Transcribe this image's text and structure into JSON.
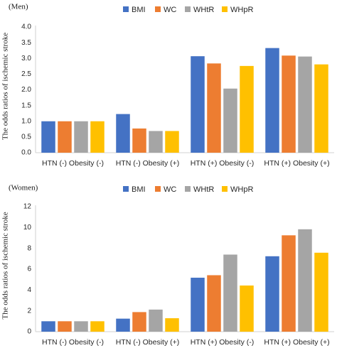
{
  "legend": {
    "entries": [
      {
        "name": "BMI",
        "color": "#4472C4"
      },
      {
        "name": "WC",
        "color": "#ED7D31"
      },
      {
        "name": "WHtR",
        "color": "#A5A5A5"
      },
      {
        "name": "WHpR",
        "color": "#FFC000"
      }
    ]
  },
  "chart_data": [
    {
      "type": "bar",
      "panel_label": "(Men)",
      "ylabel": "The odds ratios of ischemic stroke",
      "categories": [
        "HTN (-) Obesity (-)",
        "HTN (-) Obesity (+)",
        "HTN (+) Obesity (-)",
        "HTN (+) Obesity (+)"
      ],
      "series": [
        {
          "name": "BMI",
          "color": "#4472C4",
          "values": [
            1.0,
            1.23,
            3.07,
            3.33
          ]
        },
        {
          "name": "WC",
          "color": "#ED7D31",
          "values": [
            1.0,
            0.77,
            2.84,
            3.09
          ]
        },
        {
          "name": "WHtR",
          "color": "#A5A5A5",
          "values": [
            1.0,
            0.69,
            2.04,
            3.06
          ]
        },
        {
          "name": "WHpR",
          "color": "#FFC000",
          "values": [
            1.0,
            0.69,
            2.76,
            2.81
          ]
        }
      ],
      "ylim": [
        0,
        4
      ],
      "yticks": [
        "0.0",
        "0.5",
        "1.0",
        "1.5",
        "2.0",
        "2.5",
        "3.0",
        "3.5",
        "4.0"
      ],
      "grid": false,
      "legend_position": "top"
    },
    {
      "type": "bar",
      "panel_label": "(Women)",
      "ylabel": "The odds ratios of ischemic stroke",
      "categories": [
        "HTN (-) Obesity (-)",
        "HTN (-) Obesity (+)",
        "HTN (+) Obesity (-)",
        "HTN (+) Obesity (+)"
      ],
      "series": [
        {
          "name": "BMI",
          "color": "#4472C4",
          "values": [
            1.0,
            1.25,
            5.18,
            7.24
          ]
        },
        {
          "name": "WC",
          "color": "#ED7D31",
          "values": [
            1.0,
            1.88,
            5.42,
            9.25
          ]
        },
        {
          "name": "WHtR",
          "color": "#A5A5A5",
          "values": [
            1.0,
            2.12,
            7.4,
            9.83
          ]
        },
        {
          "name": "WHpR",
          "color": "#FFC000",
          "values": [
            1.0,
            1.29,
            4.43,
            7.58
          ]
        }
      ],
      "ylim": [
        0,
        12
      ],
      "yticks": [
        "0",
        "2",
        "4",
        "6",
        "8",
        "10",
        "12"
      ],
      "grid": false,
      "legend_position": "top"
    }
  ]
}
